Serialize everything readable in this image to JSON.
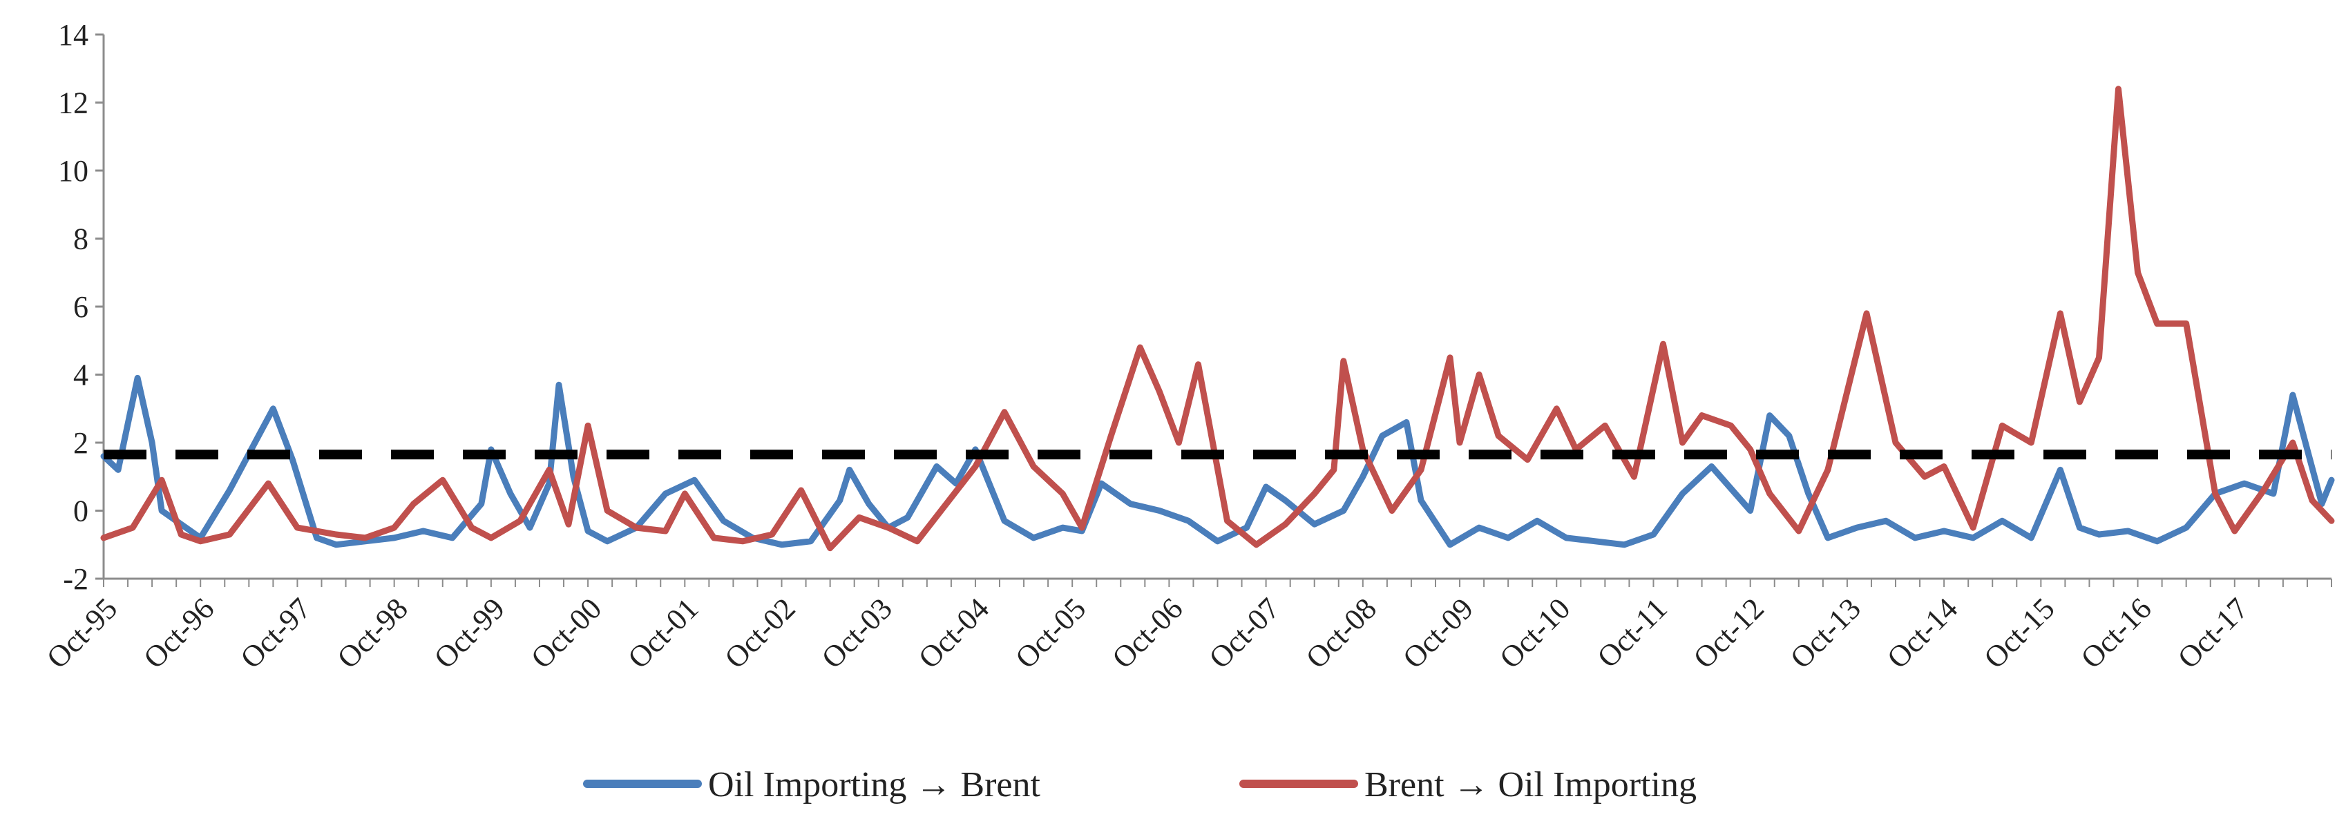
{
  "chart_data": {
    "type": "line",
    "title": "",
    "xlabel": "",
    "ylabel": "",
    "ylim": [
      -2,
      14
    ],
    "yticks": [
      -2,
      0,
      2,
      4,
      6,
      8,
      10,
      12,
      14
    ],
    "ytick_labels": [
      "-2",
      "0",
      "2",
      "4",
      "6",
      "8",
      "10",
      "12",
      "14"
    ],
    "xlim": [
      0,
      23
    ],
    "xticks": [
      0,
      1,
      2,
      3,
      4,
      5,
      6,
      7,
      8,
      9,
      10,
      11,
      12,
      13,
      14,
      15,
      16,
      17,
      18,
      19,
      20,
      21,
      22
    ],
    "xtick_labels": [
      "Oct-95",
      "Oct-96",
      "Oct-97",
      "Oct-98",
      "Oct-99",
      "Oct-00",
      "Oct-01",
      "Oct-02",
      "Oct-03",
      "Oct-04",
      "Oct-05",
      "Oct-06",
      "Oct-07",
      "Oct-08",
      "Oct-09",
      "Oct-10",
      "Oct-11",
      "Oct-12",
      "Oct-13",
      "Oct-14",
      "Oct-15",
      "Oct-16",
      "Oct-17"
    ],
    "legend_position": "bottom",
    "series": [
      {
        "name": "Oil Importing → Brent",
        "color": "#4a7ebb",
        "x": [
          0,
          0.15,
          0.35,
          0.5,
          0.6,
          0.75,
          1.0,
          1.3,
          1.6,
          1.75,
          1.95,
          2.2,
          2.4,
          2.7,
          3.0,
          3.3,
          3.6,
          3.9,
          4.0,
          4.2,
          4.4,
          4.6,
          4.7,
          4.85,
          5.0,
          5.2,
          5.5,
          5.8,
          6.1,
          6.4,
          6.7,
          7.0,
          7.3,
          7.6,
          7.7,
          7.9,
          8.1,
          8.3,
          8.6,
          8.8,
          9.0,
          9.3,
          9.6,
          9.9,
          10.1,
          10.3,
          10.6,
          10.9,
          11.2,
          11.5,
          11.8,
          12.0,
          12.2,
          12.5,
          12.8,
          13.0,
          13.2,
          13.45,
          13.6,
          13.9,
          14.2,
          14.5,
          14.8,
          15.1,
          15.4,
          15.7,
          16.0,
          16.3,
          16.6,
          17.0,
          17.2,
          17.4,
          17.6,
          17.8,
          18.1,
          18.4,
          18.7,
          19.0,
          19.3,
          19.6,
          19.9,
          20.2,
          20.4,
          20.6,
          20.9,
          21.2,
          21.5,
          21.8,
          22.1,
          22.4,
          22.6,
          22.75,
          22.9,
          23.0
        ],
        "values": [
          1.6,
          1.2,
          3.9,
          2.0,
          0.0,
          -0.3,
          -0.8,
          0.6,
          2.2,
          3.0,
          1.5,
          -0.8,
          -1.0,
          -0.9,
          -0.8,
          -0.6,
          -0.8,
          0.2,
          1.8,
          0.5,
          -0.5,
          0.8,
          3.7,
          1.0,
          -0.6,
          -0.9,
          -0.5,
          0.5,
          0.9,
          -0.3,
          -0.8,
          -1.0,
          -0.9,
          0.3,
          1.2,
          0.2,
          -0.5,
          -0.2,
          1.3,
          0.8,
          1.8,
          -0.3,
          -0.8,
          -0.5,
          -0.6,
          0.8,
          0.2,
          0.0,
          -0.3,
          -0.9,
          -0.5,
          0.7,
          0.3,
          -0.4,
          0.0,
          1.0,
          2.2,
          2.6,
          0.3,
          -1.0,
          -0.5,
          -0.8,
          -0.3,
          -0.8,
          -0.9,
          -1.0,
          -0.7,
          0.5,
          1.3,
          0.0,
          2.8,
          2.2,
          0.5,
          -0.8,
          -0.5,
          -0.3,
          -0.8,
          -0.6,
          -0.8,
          -0.3,
          -0.8,
          1.2,
          -0.5,
          -0.7,
          -0.6,
          -0.9,
          -0.5,
          0.5,
          0.8,
          0.5,
          3.4,
          1.8,
          0.2,
          0.9
        ]
      },
      {
        "name": "Brent → Oil Importing",
        "color": "#c0504d",
        "x": [
          0,
          0.3,
          0.6,
          0.8,
          1.0,
          1.3,
          1.7,
          2.0,
          2.4,
          2.7,
          3.0,
          3.2,
          3.5,
          3.8,
          4.0,
          4.3,
          4.6,
          4.8,
          5.0,
          5.2,
          5.5,
          5.8,
          6.0,
          6.3,
          6.6,
          6.9,
          7.2,
          7.5,
          7.8,
          8.1,
          8.4,
          8.7,
          9.0,
          9.3,
          9.6,
          9.9,
          10.1,
          10.4,
          10.7,
          10.9,
          11.1,
          11.3,
          11.6,
          11.9,
          12.2,
          12.5,
          12.7,
          12.8,
          13.0,
          13.3,
          13.6,
          13.9,
          14.0,
          14.2,
          14.4,
          14.7,
          15.0,
          15.2,
          15.5,
          15.8,
          16.1,
          16.3,
          16.5,
          16.8,
          17.0,
          17.2,
          17.5,
          17.8,
          18.0,
          18.2,
          18.5,
          18.8,
          19.0,
          19.3,
          19.6,
          19.9,
          20.2,
          20.4,
          20.6,
          20.8,
          21.0,
          21.2,
          21.5,
          21.8,
          22.0,
          22.3,
          22.6,
          22.8,
          23.0
        ],
        "values": [
          -0.8,
          -0.5,
          0.9,
          -0.7,
          -0.9,
          -0.7,
          0.8,
          -0.5,
          -0.7,
          -0.8,
          -0.5,
          0.2,
          0.9,
          -0.5,
          -0.8,
          -0.3,
          1.2,
          -0.4,
          2.5,
          0.0,
          -0.5,
          -0.6,
          0.5,
          -0.8,
          -0.9,
          -0.7,
          0.6,
          -1.1,
          -0.2,
          -0.5,
          -0.9,
          0.2,
          1.3,
          2.9,
          1.3,
          0.5,
          -0.5,
          2.2,
          4.8,
          3.5,
          2.0,
          4.3,
          -0.3,
          -1.0,
          -0.4,
          0.5,
          1.2,
          4.4,
          1.8,
          0.0,
          1.2,
          4.5,
          2.0,
          4.0,
          2.2,
          1.5,
          3.0,
          1.8,
          2.5,
          1.0,
          4.9,
          2.0,
          2.8,
          2.5,
          1.8,
          0.5,
          -0.6,
          1.2,
          3.5,
          5.8,
          2.0,
          1.0,
          1.3,
          -0.5,
          2.5,
          2.0,
          5.8,
          3.2,
          4.5,
          12.4,
          7.0,
          5.5,
          5.5,
          0.5,
          -0.6,
          0.6,
          2.0,
          0.3,
          -0.3
        ]
      }
    ],
    "reference_lines": [
      {
        "y": 1.65,
        "style": "dashed",
        "color": "#000000"
      }
    ]
  }
}
